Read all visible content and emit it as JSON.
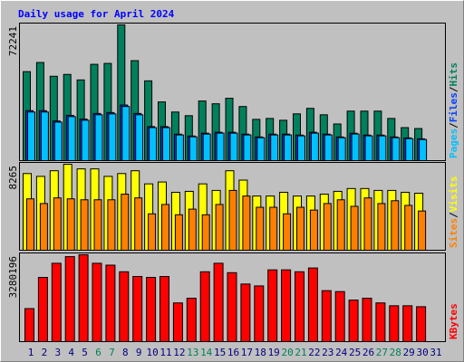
{
  "title": "Daily usage for April 2024",
  "chart_data": [
    {
      "type": "bar",
      "ylim": [
        0,
        72241
      ],
      "yticks": [
        72241
      ],
      "legend_separator": "/",
      "series": [
        {
          "name": "Hits",
          "color": "#00805c",
          "values": [
            47350,
            52230,
            44900,
            45880,
            42950,
            51250,
            51740,
            72241,
            53200,
            42460,
            31240,
            25870,
            23920,
            31730,
            30260,
            33190,
            28800,
            21960,
            22450,
            21480,
            24890,
            27820,
            24400,
            19520,
            26360,
            26360,
            26360,
            22450,
            17570,
            17080,
            null
          ]
        },
        {
          "name": "Files",
          "color": "#0040ff",
          "values": [
            26600,
            26600,
            21100,
            24100,
            22100,
            25100,
            25600,
            29600,
            25100,
            18100,
            18100,
            14100,
            13100,
            14600,
            15100,
            15100,
            14100,
            12600,
            14100,
            14100,
            13600,
            15100,
            14100,
            12600,
            14600,
            13600,
            13600,
            12600,
            12100,
            11600,
            null
          ]
        },
        {
          "name": "Pages",
          "color": "#00c0ff",
          "values": [
            25870,
            25870,
            20500,
            23430,
            21480,
            24400,
            24890,
            28800,
            24400,
            17570,
            17570,
            13670,
            12690,
            14150,
            14640,
            14640,
            13670,
            12200,
            13670,
            13670,
            13180,
            14640,
            13670,
            12200,
            14150,
            13180,
            13180,
            12200,
            11710,
            11230,
            null
          ]
        }
      ]
    },
    {
      "type": "bar",
      "ylim": [
        0,
        8265
      ],
      "yticks": [
        8265
      ],
      "legend_separator": "/",
      "series": [
        {
          "name": "Visits",
          "color": "#ffff00",
          "values": [
            7370,
            7100,
            7640,
            8265,
            7820,
            7820,
            7100,
            7370,
            7640,
            6380,
            6560,
            5570,
            5660,
            6380,
            5750,
            7640,
            6740,
            5210,
            5210,
            5570,
            5210,
            5210,
            5390,
            5660,
            5930,
            5930,
            5750,
            5750,
            5570,
            5480,
            null
          ]
        },
        {
          "name": "Sites",
          "color": "#ff8000",
          "values": [
            4940,
            4490,
            5030,
            4940,
            4850,
            4850,
            4850,
            5390,
            5030,
            3500,
            4400,
            3410,
            3950,
            3410,
            4400,
            5750,
            5210,
            4130,
            4130,
            3500,
            4130,
            3860,
            4490,
            4850,
            4220,
            5030,
            4490,
            4760,
            4310,
            3770,
            null
          ]
        }
      ]
    },
    {
      "type": "bar",
      "ylim": [
        0,
        3280196
      ],
      "yticks": [
        3280196
      ],
      "categories": [
        "1",
        "2",
        "3",
        "4",
        "5",
        "6",
        "7",
        "8",
        "9",
        "10",
        "11",
        "12",
        "13",
        "14",
        "15",
        "16",
        "17",
        "18",
        "19",
        "20",
        "21",
        "22",
        "23",
        "24",
        "25",
        "26",
        "27",
        "28",
        "29",
        "30",
        "31"
      ],
      "category_color": "#000080",
      "highlight_color": "#00805c",
      "highlight_indices": [
        5,
        6,
        12,
        13,
        19,
        20,
        26,
        27
      ],
      "series": [
        {
          "name": "KBytes",
          "color": "#ff0000",
          "values": [
            1248000,
            2424000,
            2959000,
            3209000,
            3280196,
            2959000,
            2888000,
            2638000,
            2460000,
            2424000,
            2460000,
            1462000,
            1640000,
            2638000,
            2959000,
            2603000,
            2175000,
            2104000,
            2710000,
            2710000,
            2638000,
            2781000,
            1925000,
            1890000,
            1569000,
            1640000,
            1462000,
            1355000,
            1355000,
            1319000,
            null
          ]
        }
      ]
    }
  ]
}
